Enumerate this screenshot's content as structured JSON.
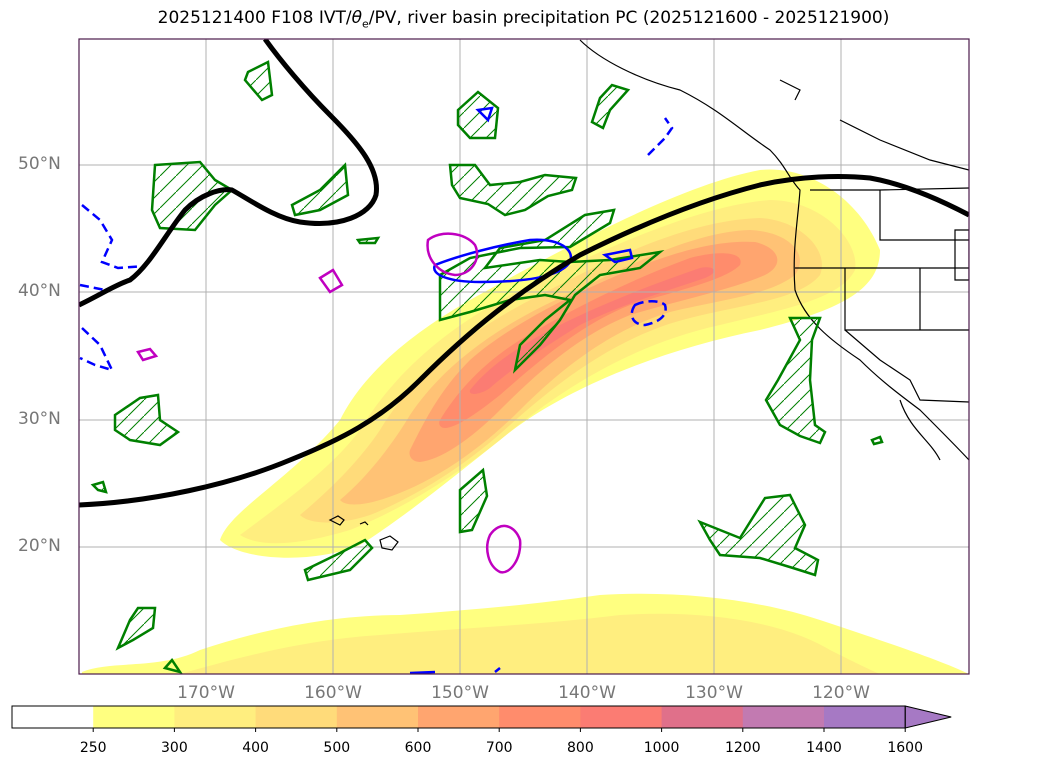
{
  "title": {
    "prefix": "2025121400 F108 IVT/",
    "theta": "θ",
    "sub": "e",
    "suffix": "/PV, river basin precipitation PC (2025121600 - 2025121900)"
  },
  "lat_labels": [
    "50°N",
    "40°N",
    "30°N",
    "20°N"
  ],
  "lon_labels": [
    "170°W",
    "160°W",
    "150°W",
    "140°W",
    "130°W",
    "120°W"
  ],
  "colorbar": {
    "levels": [
      "250",
      "300",
      "400",
      "500",
      "600",
      "700",
      "800",
      "1000",
      "1200",
      "1400",
      "1600"
    ],
    "colors": [
      "#ffffff",
      "#ffff80",
      "#ffee7f",
      "#ffdb7a",
      "#ffc275",
      "#ffa56f",
      "#ff8c6c",
      "#fb7c73",
      "#e0708a",
      "#c27ab1",
      "#a679c4"
    ],
    "extend": "max"
  },
  "colors": {
    "theta_e_contour": "#000000",
    "precip_contour": "#008000",
    "pv_blue": "#0000ff",
    "pv_magenta": "#c000c0",
    "grid": "#b0b0b0",
    "coast": "#000000"
  }
}
